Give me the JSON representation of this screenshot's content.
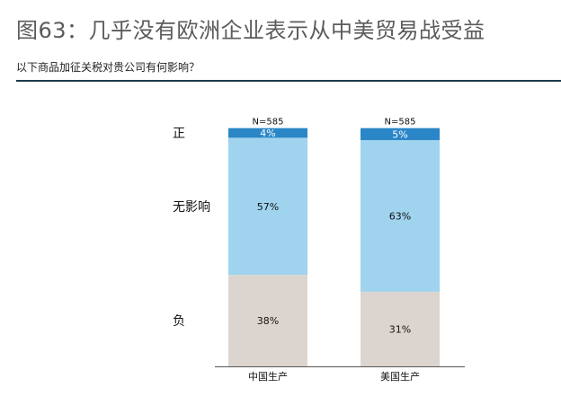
{
  "title": "图63：几乎没有欧洲企业表示从中美贸易战受益",
  "subtitle": "以下商品加征关税对贵公司有何影响？",
  "colors": {
    "positive": "#2a86c7",
    "no_impact": "#9fd3ee",
    "negative": "#dcd5cf",
    "rule": "#1d3a4a",
    "axis": "#555555"
  },
  "chart_data": {
    "type": "bar",
    "stacked": true,
    "percent": true,
    "categories": [
      "中国生产",
      "美国生产"
    ],
    "sample_labels": [
      "N=585",
      "N=585"
    ],
    "series": [
      {
        "name": "负",
        "values": [
          38,
          31
        ],
        "labels": [
          "38%",
          "31%"
        ],
        "color": "#dcd5cf"
      },
      {
        "name": "无影响",
        "values": [
          57,
          63
        ],
        "labels": [
          "57%",
          "63%"
        ],
        "color": "#9fd3ee"
      },
      {
        "name": "正",
        "values": [
          4,
          5
        ],
        "labels": [
          "4%",
          "5%"
        ],
        "color": "#2a86c7"
      }
    ],
    "ylim": [
      0,
      100
    ],
    "grid": false
  }
}
